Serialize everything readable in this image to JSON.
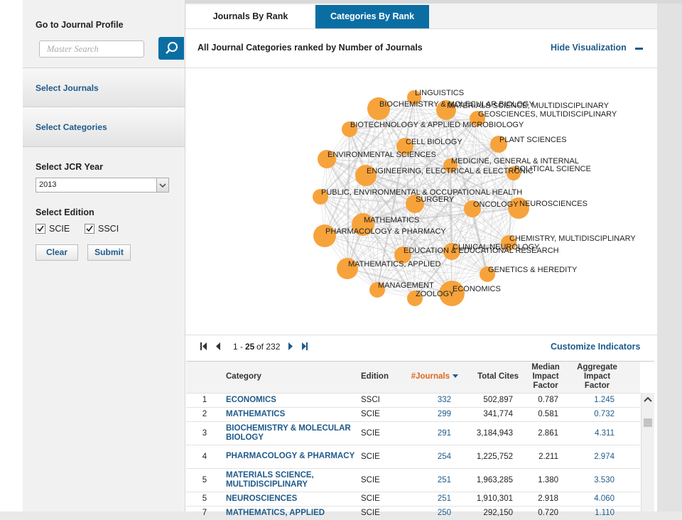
{
  "tabs": [
    "Journals By Rank",
    "Categories By Rank"
  ],
  "sidebar": {
    "profile_title": "Go to Journal Profile",
    "search_placeholder": "Master Search",
    "sections": [
      "Select Journals",
      "Select Categories"
    ],
    "year_label": "Select JCR Year",
    "year": "2013",
    "edition_label": "Select Edition",
    "editions": [
      "SCIE",
      "SSCI"
    ],
    "buttons": [
      "Clear",
      "Submit"
    ]
  },
  "panel": {
    "title": "All Journal Categories ranked by Number of Journals",
    "toggle": "Hide Visualization"
  },
  "graph": {
    "nodes": [
      "LINGUISTICS",
      "BIOCHEMISTRY & MOLECULAR BIOLOGY",
      "MATERIALS SCIENCE, MULTIDISCIPLINARY",
      "GEOSCIENCES, MULTIDISCIPLINARY",
      "BIOTECHNOLOGY & APPLIED MICROBIOLOGY",
      "CELL BIOLOGY",
      "PLANT SCIENCES",
      "ENVIRONMENTAL SCIENCES",
      "MEDICINE, GENERAL & INTERNAL",
      "ENGINEERING, ELECTRICAL & ELECTRONIC",
      "POLITICAL SCIENCE",
      "PUBLIC, ENVIRONMENTAL & OCCUPATIONAL HEALTH",
      "SURGERY",
      "ONCOLOGY",
      "NEUROSCIENCES",
      "MATHEMATICS",
      "PHARMACOLOGY & PHARMACY",
      "CHEMISTRY, MULTIDISCIPLINARY",
      "CLINICAL NEUROLOGY",
      "EDUCATION & EDUCATIONAL RESEARCH",
      "MATHEMATICS, APPLIED",
      "GENETICS & HEREDITY",
      "MANAGEMENT",
      "ECONOMICS",
      "ZOOLOGY"
    ]
  },
  "pager": {
    "from": "1 -",
    "to": "25",
    "total": "of 232",
    "customize": "Customize Indicators"
  },
  "table": {
    "headers": [
      "Category",
      "Edition",
      "#Journals",
      "Total Cites",
      "Median Impact Factor",
      "Aggregate Impact Factor"
    ],
    "rows": [
      [
        "1",
        "ECONOMICS",
        "SSCI",
        "332",
        "502,897",
        "0.787",
        "1.245"
      ],
      [
        "2",
        "MATHEMATICS",
        "SCIE",
        "299",
        "341,774",
        "0.581",
        "0.732"
      ],
      [
        "3",
        "BIOCHEMISTRY & MOLECULAR BIOLOGY",
        "SCIE",
        "291",
        "3,184,943",
        "2.861",
        "4.311"
      ],
      [
        "4",
        "PHARMACOLOGY & PHARMACY",
        "SCIE",
        "254",
        "1,225,752",
        "2.211",
        "2.974"
      ],
      [
        "5",
        "MATERIALS SCIENCE, MULTIDISCIPLINARY",
        "SCIE",
        "251",
        "1,963,285",
        "1.380",
        "3.530"
      ],
      [
        "5",
        "NEUROSCIENCES",
        "SCIE",
        "251",
        "1,910,301",
        "2.918",
        "4.060"
      ],
      [
        "7",
        "MATHEMATICS, APPLIED",
        "SCIE",
        "250",
        "292,150",
        "0.720",
        "1.110"
      ]
    ]
  }
}
